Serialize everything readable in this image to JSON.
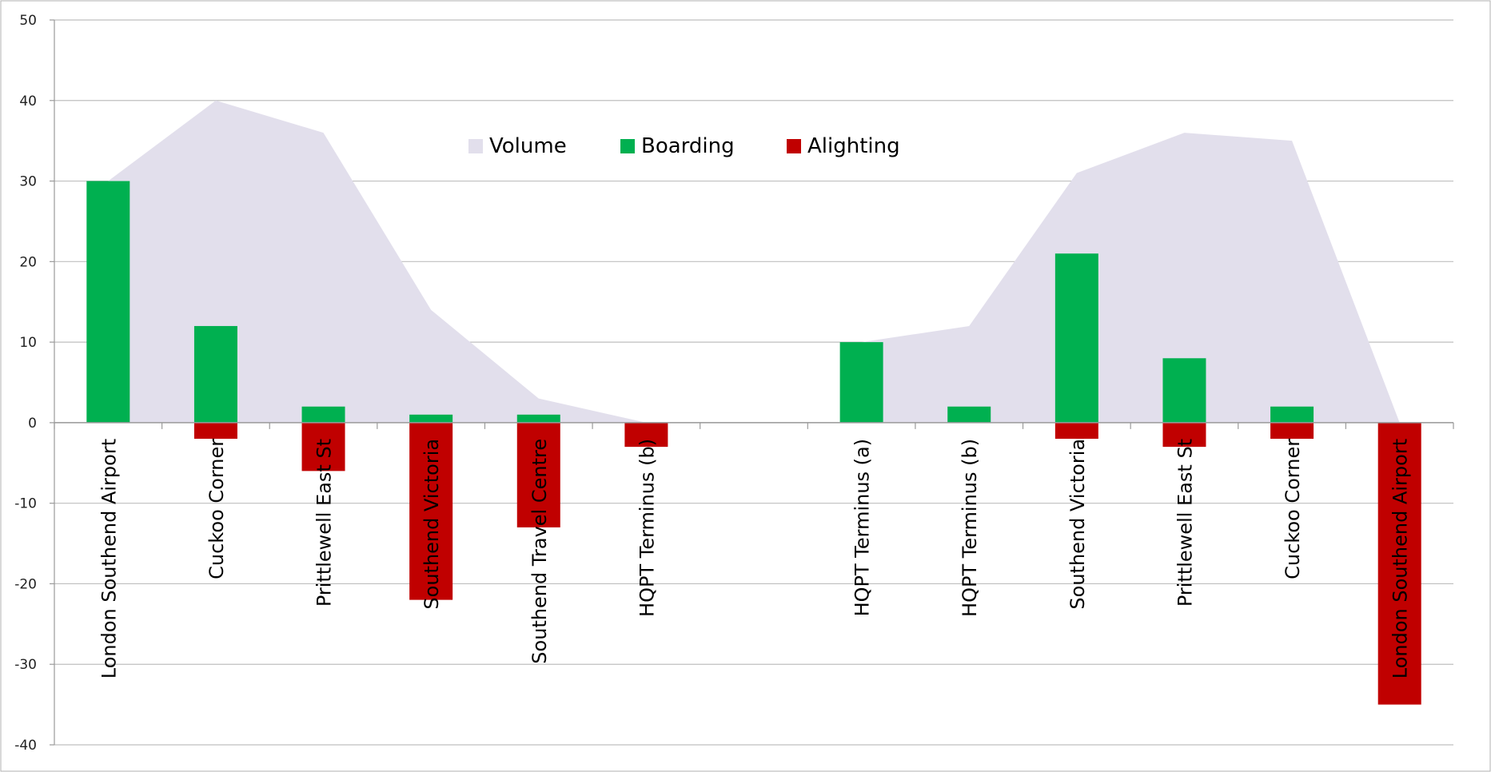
{
  "chart_data": {
    "type": "bar",
    "categories": [
      "London Southend Airport",
      "Cuckoo Corner",
      "Prittlewell East St",
      "Southend Victoria",
      "Southend Travel Centre",
      "HQPT Terminus (b)",
      "",
      "HQPT Terminus (a)",
      "HQPT Terminus (b)",
      "Southend Victoria",
      "Prittlewell East St",
      "Cuckoo Corner",
      "London Southend Airport"
    ],
    "series": [
      {
        "name": "Volume",
        "type": "area",
        "color": "#e2dfec",
        "values": [
          30,
          40,
          36,
          14,
          3,
          0,
          null,
          10,
          12,
          31,
          36,
          35,
          0
        ]
      },
      {
        "name": "Boarding",
        "type": "bar",
        "color": "#00b050",
        "values": [
          30,
          12,
          2,
          1,
          1,
          0,
          null,
          10,
          2,
          21,
          8,
          2,
          0
        ]
      },
      {
        "name": "Alighting",
        "type": "bar",
        "color": "#c00000",
        "values": [
          0,
          -2,
          -6,
          -22,
          -13,
          -3,
          null,
          0,
          0,
          -2,
          -3,
          -2,
          -35
        ]
      }
    ],
    "ylim": [
      -40,
      50
    ],
    "yticks": [
      "50",
      "40",
      "30",
      "20",
      "10",
      "0",
      "-10",
      "-20",
      "-30",
      "-40"
    ],
    "grid": true,
    "legend_position": "top-center"
  }
}
